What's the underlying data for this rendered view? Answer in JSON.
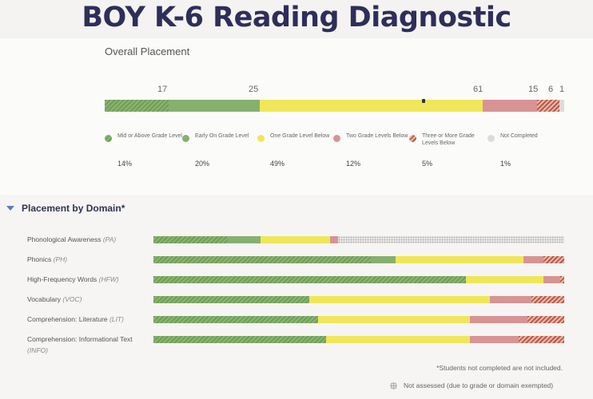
{
  "title": "BOY K-6 Reading Diagnostic",
  "overall": {
    "label": "Overall Placement",
    "counts": [
      "17",
      "25",
      "61",
      "15",
      "6",
      "1"
    ],
    "segments": [
      {
        "key": "mid_above",
        "pct": 14
      },
      {
        "key": "early_on",
        "pct": 20
      },
      {
        "key": "one_below",
        "pct": 49
      },
      {
        "key": "two_below",
        "pct": 12
      },
      {
        "key": "three_below",
        "pct": 5
      },
      {
        "key": "not_completed",
        "pct": 1
      }
    ]
  },
  "legend": [
    {
      "label": "Mid or Above Grade Level",
      "pct": "14%",
      "color": "#6f9e56"
    },
    {
      "label": "Early On Grade Level",
      "pct": "20%",
      "color": "#86b06e"
    },
    {
      "label": "One Grade Level Below",
      "pct": "49%",
      "color": "#f0e65a"
    },
    {
      "label": "Two Grade Levels Below",
      "pct": "12%",
      "color": "#d89393"
    },
    {
      "label": "Three or More Grade Levels Below",
      "pct": "5%",
      "color": "#b85a4c"
    },
    {
      "label": "Not Completed",
      "pct": "1%",
      "color": "#dcdcdc"
    }
  ],
  "domain_section": {
    "header": "Placement by Domain*",
    "domains": [
      {
        "name": "Phonological Awareness",
        "abbr": "(PA)",
        "fractions": [
          0.18,
          0.08,
          0.17,
          0.02,
          0,
          0
        ],
        "not_assessed": 0.55
      },
      {
        "name": "Phonics",
        "abbr": "(PH)",
        "fractions": [
          0.53,
          0.06,
          0.31,
          0.05,
          0.05,
          0
        ],
        "not_assessed": 0
      },
      {
        "name": "High-Frequency Words",
        "abbr": "(HFW)",
        "fractions": [
          0.76,
          0.0,
          0.19,
          0.04,
          0.01,
          0
        ],
        "not_assessed": 0
      },
      {
        "name": "Vocabulary",
        "abbr": "(VOC)",
        "fractions": [
          0.38,
          0.0,
          0.44,
          0.1,
          0.08,
          0
        ],
        "not_assessed": 0
      },
      {
        "name": "Comprehension: Literature",
        "abbr": "(LIT)",
        "fractions": [
          0.4,
          0.0,
          0.37,
          0.14,
          0.09,
          0
        ],
        "not_assessed": 0
      },
      {
        "name": "Comprehension: Informational Text",
        "abbr": "(INFO)",
        "fractions": [
          0.42,
          0.0,
          0.35,
          0.12,
          0.11,
          0
        ],
        "not_assessed": 0
      }
    ]
  },
  "footnote": "*Students not completed are not included.",
  "not_assessed_label": "Not assessed (due to grade or domain exempted)"
}
